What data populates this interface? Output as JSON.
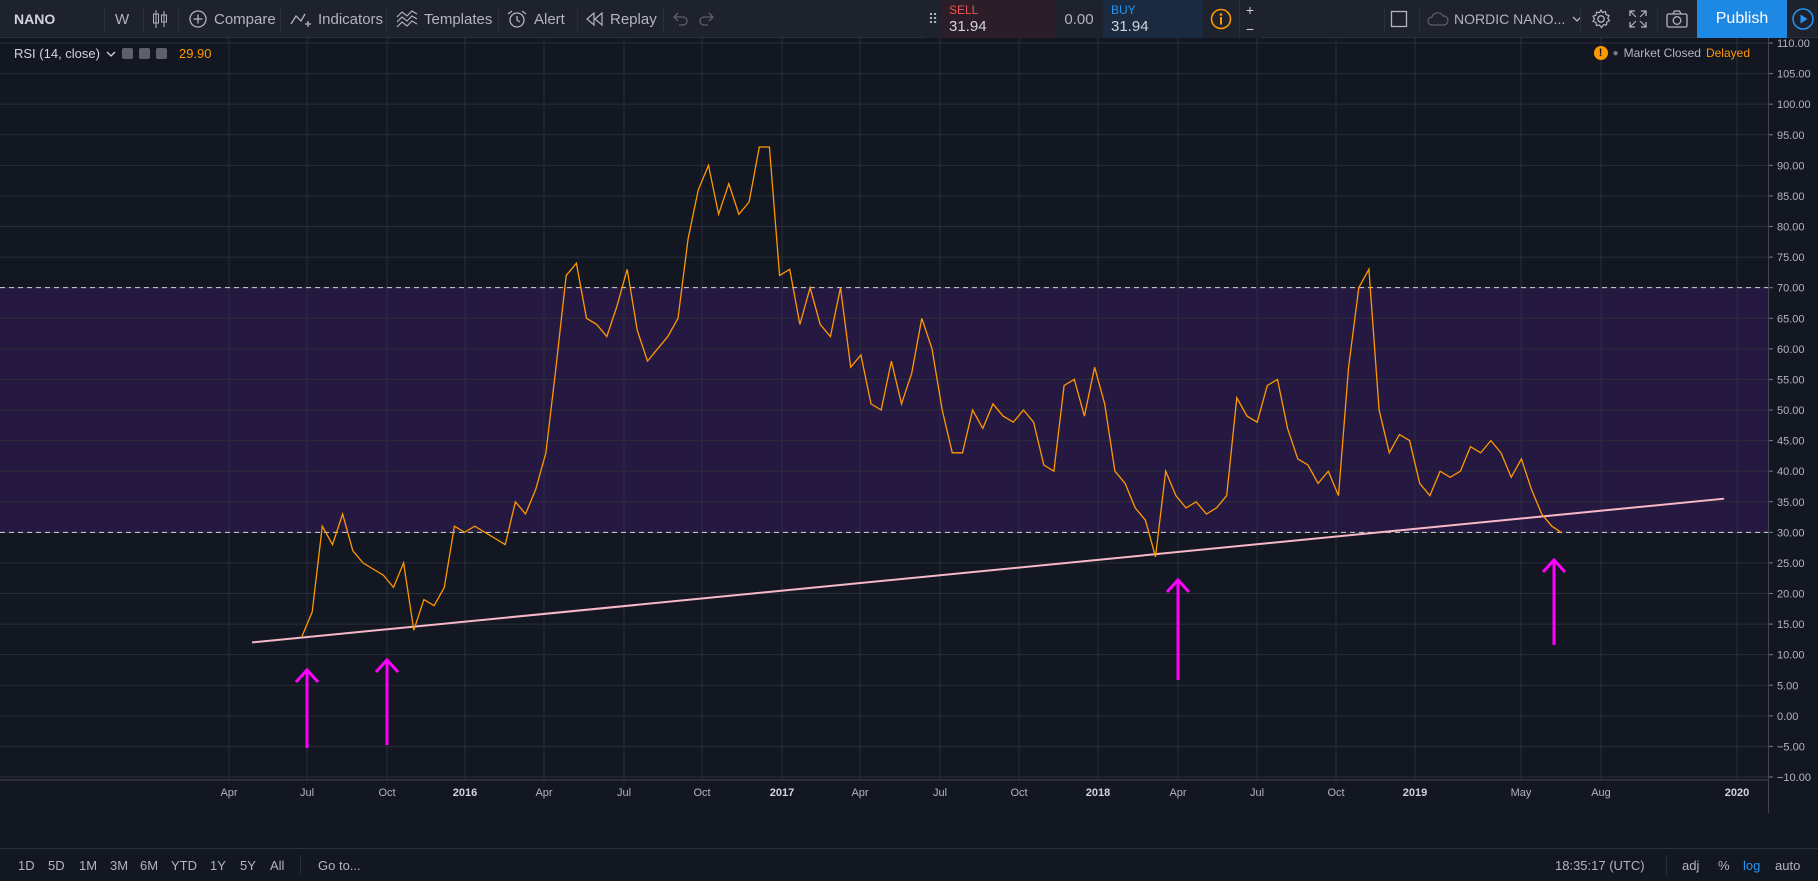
{
  "toolbar": {
    "symbol": "NANO",
    "interval": "W",
    "compare_label": "Compare",
    "indicators_label": "Indicators",
    "templates_label": "Templates",
    "alert_label": "Alert",
    "replay_label": "Replay",
    "exchange_label": "NORDIC NANO...",
    "publish_label": "Publish"
  },
  "trade": {
    "sell_label": "SELL",
    "sell_price": "31.94",
    "spread": "0.00",
    "buy_label": "BUY",
    "buy_price": "31.94",
    "plus": "+",
    "minus": "−"
  },
  "legend": {
    "indicator_name": "RSI (14, close)",
    "value": "29.90"
  },
  "market_status": {
    "closed_label": "Market Closed",
    "delayed_label": "Delayed"
  },
  "bottom": {
    "ranges": [
      "1D",
      "5D",
      "1M",
      "3M",
      "6M",
      "YTD",
      "1Y",
      "5Y",
      "All"
    ],
    "goto_label": "Go to...",
    "time": "18:35:17 (UTC)",
    "adj": "adj",
    "percent": "%",
    "log": "log",
    "auto": "auto"
  },
  "colors": {
    "background": "#131722",
    "rsi_line": "#ff9800",
    "band_fill": "#2a1a46",
    "trendline": "#f7b8c8",
    "arrow": "#ff00ff",
    "log_active": "#2196f3"
  },
  "chart_data": {
    "type": "line",
    "indicator": "RSI (14, close)",
    "ylim": [
      -10,
      110
    ],
    "yticks": [
      "110.00",
      "105.00",
      "100.00",
      "95.00",
      "90.00",
      "85.00",
      "80.00",
      "75.00",
      "70.00",
      "65.00",
      "60.00",
      "55.00",
      "50.00",
      "45.00",
      "40.00",
      "35.00",
      "30.00",
      "25.00",
      "20.00",
      "15.00",
      "10.00",
      "5.00",
      "0.00",
      "−5.00",
      "−10.00"
    ],
    "xticks": [
      "Apr",
      "Jul",
      "Oct",
      "2016",
      "Apr",
      "Jul",
      "Oct",
      "2017",
      "Apr",
      "Jul",
      "Oct",
      "2018",
      "Apr",
      "Jul",
      "Oct",
      "2019",
      "May",
      "Aug",
      "2020"
    ],
    "bold_xticks": [
      "2016",
      "2017",
      "2018",
      "2019",
      "2020"
    ],
    "band": [
      30,
      70
    ],
    "series": [
      {
        "values": [
          13,
          17,
          31,
          28,
          33,
          27,
          25,
          24,
          23,
          21,
          25,
          14,
          19,
          18,
          21,
          31,
          30,
          31,
          30,
          29,
          28,
          35,
          33,
          37,
          43,
          57,
          72,
          74,
          65,
          64,
          62,
          67,
          73,
          63,
          58,
          60,
          62,
          65,
          78,
          86,
          90,
          82,
          87,
          82,
          84,
          93,
          93,
          72,
          73,
          64,
          70,
          64,
          62,
          70,
          57,
          59,
          51,
          50,
          58,
          51,
          56,
          65,
          60,
          50,
          43,
          43,
          50,
          47,
          51,
          49,
          48,
          50,
          48,
          41,
          40,
          54,
          55,
          49,
          57,
          51,
          40,
          38,
          34,
          32,
          26,
          40,
          36,
          34,
          35,
          33,
          34,
          36,
          52,
          49,
          48,
          54,
          55,
          47,
          42,
          41,
          38,
          40,
          36,
          57,
          70,
          73,
          50,
          43,
          46,
          45,
          38,
          36,
          40,
          39,
          40,
          44,
          43,
          45,
          43,
          39,
          42,
          37,
          33,
          31,
          29.9
        ]
      }
    ],
    "trendline": {
      "from": [
        0,
        12
      ],
      "to": [
        1.0,
        35.5
      ]
    },
    "arrows": 4
  }
}
